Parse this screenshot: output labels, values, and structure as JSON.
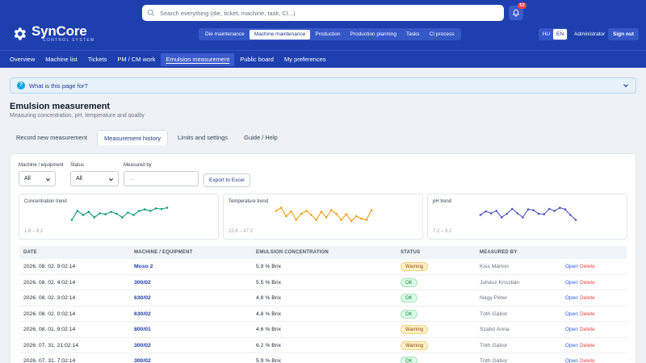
{
  "brand": {
    "name": "SynCore",
    "subtitle": "CONTROL SYSTEM"
  },
  "search": {
    "placeholder": "Search everything (die, ticket, machine, task, CI...)"
  },
  "notifications": {
    "count": "53"
  },
  "modules": [
    {
      "label": "Die maintenance",
      "active": false
    },
    {
      "label": "Machine maintenance",
      "active": true
    },
    {
      "label": "Production",
      "active": false
    },
    {
      "label": "Production planning",
      "active": false
    },
    {
      "label": "Tasks",
      "active": false
    },
    {
      "label": "CI process",
      "active": false
    }
  ],
  "languages": [
    {
      "label": "HU",
      "active": false
    },
    {
      "label": "EN",
      "active": true
    }
  ],
  "user": {
    "name": "Administrator",
    "signout": "Sign out"
  },
  "subnav": [
    {
      "label": "Overview",
      "active": false
    },
    {
      "label": "Machine list",
      "active": false
    },
    {
      "label": "Tickets",
      "active": false
    },
    {
      "label": "PM / CM work",
      "active": false
    },
    {
      "label": "Emulsion measurement",
      "active": true
    },
    {
      "label": "Public board",
      "active": false
    },
    {
      "label": "My preferences",
      "active": false
    }
  ],
  "help": {
    "label": "What is this page for?"
  },
  "page": {
    "title": "Emulsion measurement",
    "subtitle": "Measuring concentration, pH, temperature and quality"
  },
  "tabs": [
    {
      "label": "Record new measurement",
      "active": false
    },
    {
      "label": "Measurement history",
      "active": true
    },
    {
      "label": "Limits and settings",
      "active": false
    },
    {
      "label": "Guide / Help",
      "active": false
    }
  ],
  "filters": {
    "machine_label": "Machine / equipment",
    "machine_value": "All",
    "status_label": "Status",
    "status_value": "All",
    "measured_by_label": "Measured by",
    "measured_by_placeholder": "...",
    "export_label": "Export to Excel"
  },
  "trends": [
    {
      "title": "Concentration trend",
      "range": "1.8 – 6.2",
      "color": "#0f9d74",
      "values": [
        0.35,
        0.72,
        0.55,
        0.68,
        0.45,
        0.62,
        0.58,
        0.68,
        0.6,
        0.45,
        0.65,
        0.55,
        0.72,
        0.78,
        0.72,
        0.82,
        0.8,
        0.85
      ]
    },
    {
      "title": "Temperature trend",
      "range": "22.6 – 47.2",
      "color": "#f29d0f",
      "values": [
        0.72,
        0.85,
        0.5,
        0.7,
        0.35,
        0.6,
        0.72,
        0.55,
        0.35,
        0.68,
        0.45,
        0.75,
        0.6,
        0.35,
        0.58,
        0.3,
        0.5,
        0.4,
        0.35,
        0.75
      ]
    },
    {
      "title": "pH trend",
      "range": "7.2 – 9.2",
      "color": "#4f55c0",
      "values": [
        0.55,
        0.7,
        0.62,
        0.72,
        0.45,
        0.6,
        0.8,
        0.62,
        0.45,
        0.78,
        0.75,
        0.6,
        0.58,
        0.8,
        0.72,
        0.85,
        0.78,
        0.55,
        0.35
      ]
    }
  ],
  "table": {
    "headers": [
      "DATE",
      "MACHINE / EQUIPMENT",
      "EMULSION CONCENTRATION",
      "STATUS",
      "MEASURED BY"
    ],
    "open_label": "Open",
    "delete_label": "Delete",
    "rows": [
      {
        "date": "2026. 08. 02. 9:02:14",
        "machine": "Moso 2",
        "conc": "5.9 % Brix",
        "status": "Warning",
        "by": "Kiss Márton"
      },
      {
        "date": "2026. 08. 02. 4:02:14",
        "machine": "300/02",
        "conc": "5.5 % Brix",
        "status": "OK",
        "by": "Juhász Krisztián"
      },
      {
        "date": "2026. 08. 02. 3:02:14",
        "machine": "630/02",
        "conc": "4.8 % Brix",
        "status": "OK",
        "by": "Nagy Péter"
      },
      {
        "date": "2026. 08. 02. 0:02:14",
        "machine": "630/02",
        "conc": "4.8 % Brix",
        "status": "OK",
        "by": "Tóth Gábor"
      },
      {
        "date": "2026. 08. 01. 9:02:14",
        "machine": "800/01",
        "conc": "4.6 % Brix",
        "status": "Warning",
        "by": "Szabó Anna"
      },
      {
        "date": "2026. 07. 31. 21:02:14",
        "machine": "300/02",
        "conc": "6.2 % Brix",
        "status": "Warning",
        "by": "Tóth Gábor"
      },
      {
        "date": "2026. 07. 31. 7:02:14",
        "machine": "300/02",
        "conc": "5.9 % Brix",
        "status": "OK",
        "by": "Tóth Gábor"
      }
    ]
  },
  "colors": {
    "header": "#1e40af",
    "accent": "#2563eb",
    "ok": "#15803d",
    "warning": "#92400e",
    "danger": "#ef4444"
  }
}
